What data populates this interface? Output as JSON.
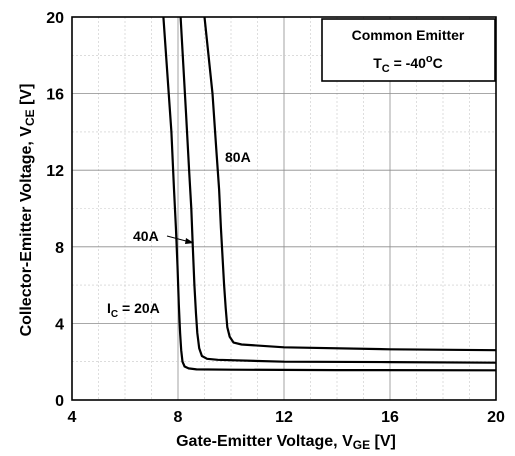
{
  "chart_data": {
    "type": "line",
    "xlabel": {
      "main": "Gate-Emitter Voltage, V",
      "sub": "GE",
      "unit": " [V]"
    },
    "ylabel": {
      "main": "Collector-Emitter Voltage, V",
      "sub": "CE",
      "unit": " [V]"
    },
    "xlim": [
      4,
      20
    ],
    "ylim": [
      0,
      20
    ],
    "xticks": [
      4,
      8,
      12,
      16,
      20
    ],
    "yticks": [
      0,
      4,
      8,
      12,
      16,
      20
    ],
    "grid": true,
    "legend": {
      "placement": "top-right",
      "line1": "Common Emitter",
      "line2_prefix": "T",
      "line2_sub": "C",
      "line2_mid": " = -40",
      "line2_sup": "o",
      "line2_suffix": "C"
    },
    "series": [
      {
        "name": "IC = 20A",
        "label": {
          "prefix": "I",
          "sub": "C",
          "suffix": " = 20A"
        },
        "x": [
          7.45,
          7.6,
          7.75,
          7.85,
          7.92,
          7.98,
          8.03,
          8.08,
          8.12,
          8.17,
          8.25,
          8.4,
          8.7,
          10,
          14,
          20
        ],
        "y": [
          20,
          17,
          14,
          11,
          9,
          7,
          5,
          3.5,
          2.6,
          2.0,
          1.75,
          1.65,
          1.6,
          1.58,
          1.56,
          1.55
        ]
      },
      {
        "name": "40A",
        "label": {
          "prefix": "",
          "sub": "",
          "suffix": "40A"
        },
        "x": [
          8.1,
          8.2,
          8.3,
          8.42,
          8.5,
          8.56,
          8.62,
          8.68,
          8.73,
          8.8,
          8.9,
          9.1,
          9.5,
          12,
          16,
          20
        ],
        "y": [
          20,
          17.5,
          15,
          12,
          10,
          8,
          6,
          4.5,
          3.5,
          2.7,
          2.3,
          2.15,
          2.1,
          2.0,
          1.98,
          1.95
        ]
      },
      {
        "name": "80A",
        "label": {
          "prefix": "",
          "sub": "",
          "suffix": "80A"
        },
        "x": [
          9.0,
          9.15,
          9.3,
          9.45,
          9.55,
          9.62,
          9.68,
          9.74,
          9.8,
          9.86,
          9.95,
          10.1,
          10.4,
          12,
          16,
          20
        ],
        "y": [
          20,
          18,
          16,
          13,
          11,
          9,
          7.5,
          6,
          4.8,
          3.8,
          3.3,
          3.0,
          2.9,
          2.75,
          2.65,
          2.6
        ]
      }
    ]
  }
}
